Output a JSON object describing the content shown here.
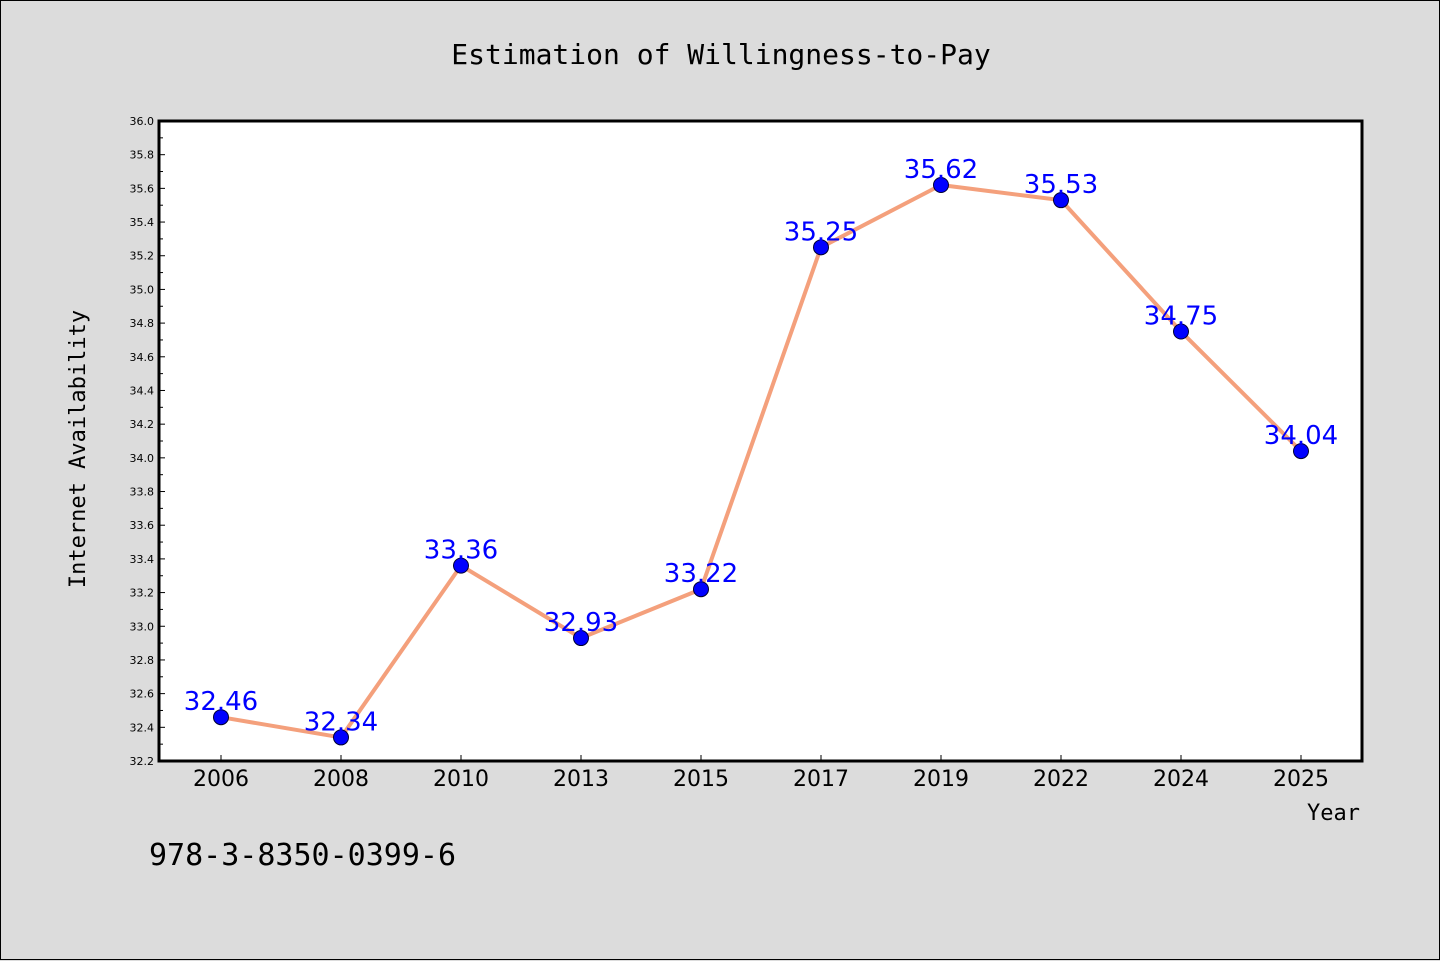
{
  "chart_data": {
    "type": "line",
    "title": "Estimation of Willingness-to-Pay",
    "xlabel": "Year",
    "ylabel": "Internet Availability",
    "categories": [
      "2006",
      "2008",
      "2010",
      "2013",
      "2015",
      "2017",
      "2019",
      "2022",
      "2024",
      "2025"
    ],
    "series": [
      {
        "values": [
          32.46,
          32.34,
          33.36,
          32.93,
          33.22,
          35.25,
          35.62,
          35.53,
          34.75,
          34.04
        ],
        "data_labels": [
          "32.46",
          "32.34",
          "33.36",
          "32.93",
          "33.22",
          "35.25",
          "35.62",
          "35.53",
          "34.75",
          "34.04"
        ]
      }
    ],
    "ylim": [
      32.2,
      36.0
    ],
    "yticks": [
      "32.2",
      "32.4",
      "32.6",
      "32.8",
      "33.0",
      "33.2",
      "33.4",
      "33.6",
      "33.8",
      "34.0",
      "34.2",
      "34.4",
      "34.6",
      "34.8",
      "35.0",
      "35.2",
      "35.4",
      "35.6",
      "35.8",
      "36.0"
    ],
    "grid": false,
    "legend": "none",
    "colors": {
      "line": "#f4a07c",
      "marker": "#0000ff",
      "data_label": "#0000ff",
      "background": "#dcdcdc",
      "plot_background": "#ffffff"
    }
  },
  "footer": {
    "isbn": "978-3-8350-0399-6"
  }
}
